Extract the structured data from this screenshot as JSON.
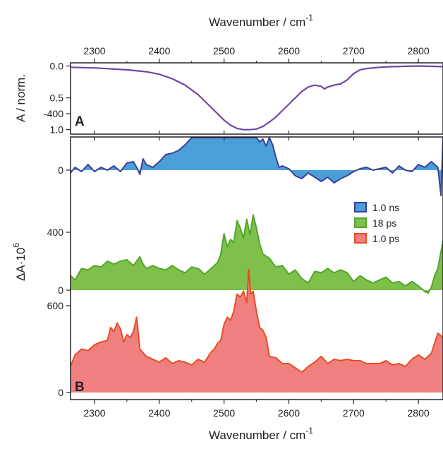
{
  "chart_data": [
    {
      "panel": "A",
      "type": "line",
      "xlabel_top": "Wavenumber / cm",
      "xlabel_top_sup": "-1",
      "ylabel": "A / norm.",
      "xlim": [
        2263,
        2838
      ],
      "ylim": [
        1.07,
        -0.05
      ],
      "y_reversed": true,
      "x_ticks": [
        "2300",
        "2400",
        "2500",
        "2600",
        "2700",
        "2800"
      ],
      "y_ticks": [
        "0.0",
        "0.5",
        "1.0"
      ],
      "color": "#6f47a6",
      "series": [
        {
          "x": [
            2263,
            2300,
            2350,
            2380,
            2400,
            2420,
            2440,
            2460,
            2480,
            2500,
            2510,
            2520,
            2530,
            2540,
            2550,
            2560,
            2570,
            2580,
            2590,
            2600,
            2610,
            2620,
            2630,
            2640,
            2650,
            2655,
            2660,
            2670,
            2675,
            2680,
            2690,
            2700,
            2710,
            2720,
            2740,
            2760,
            2800,
            2838
          ],
          "y": [
            0.02,
            0.03,
            0.06,
            0.09,
            0.13,
            0.2,
            0.3,
            0.45,
            0.65,
            0.85,
            0.93,
            0.98,
            1.0,
            1.0,
            0.99,
            0.95,
            0.88,
            0.8,
            0.7,
            0.6,
            0.5,
            0.4,
            0.33,
            0.3,
            0.32,
            0.36,
            0.33,
            0.3,
            0.29,
            0.28,
            0.22,
            0.12,
            0.06,
            0.04,
            0.02,
            0.01,
            0.0,
            0.01
          ]
        }
      ]
    },
    {
      "panel": "B",
      "type": "area",
      "xlabel": "Wavenumber / cm",
      "xlabel_sup": "-1",
      "ylabel": "ΔA·10",
      "ylabel_sup": "6",
      "xlim": [
        2263,
        2838
      ],
      "x_ticks": [
        "2300",
        "2400",
        "2500",
        "2600",
        "2700",
        "2800"
      ],
      "legend": {
        "placement": "right"
      },
      "series": [
        {
          "name": "1.0 ns",
          "fill": "#4a9fd8",
          "stroke": "#3b3f96",
          "y_ticks": [
            "0",
            "-400"
          ],
          "x": [
            2263,
            2270,
            2280,
            2290,
            2300,
            2310,
            2320,
            2330,
            2340,
            2350,
            2360,
            2365,
            2370,
            2375,
            2380,
            2390,
            2400,
            2410,
            2420,
            2430,
            2440,
            2450,
            2460,
            2465,
            2470,
            2475,
            2480,
            2485,
            2490,
            2495,
            2500,
            2505,
            2510,
            2515,
            2520,
            2525,
            2530,
            2535,
            2540,
            2545,
            2550,
            2555,
            2560,
            2565,
            2570,
            2575,
            2580,
            2585,
            2590,
            2600,
            2610,
            2620,
            2630,
            2640,
            2650,
            2660,
            2670,
            2680,
            2690,
            2700,
            2710,
            2720,
            2730,
            2740,
            2750,
            2760,
            2770,
            2780,
            2790,
            2800,
            2810,
            2820,
            2825,
            2830,
            2835,
            2838
          ],
          "y": [
            20,
            -20,
            10,
            -40,
            10,
            -20,
            0,
            -30,
            10,
            -50,
            -60,
            -20,
            30,
            -80,
            -40,
            -20,
            -60,
            -110,
            -120,
            -140,
            -180,
            -230,
            -250,
            -330,
            -300,
            -260,
            -380,
            -420,
            -480,
            -380,
            -310,
            -360,
            -370,
            -320,
            -340,
            -380,
            -310,
            -280,
            -330,
            -360,
            -280,
            -200,
            -220,
            -170,
            -280,
            -180,
            -90,
            -20,
            -30,
            -10,
            40,
            60,
            20,
            50,
            80,
            50,
            90,
            60,
            40,
            10,
            -10,
            -20,
            0,
            -10,
            -20,
            20,
            -30,
            0,
            10,
            -40,
            -20,
            -60,
            -40,
            -20,
            180,
            -450
          ]
        },
        {
          "name": "18 ps",
          "fill": "#7ec04a",
          "stroke": "#53a62b",
          "y_ticks": [
            "0",
            "400"
          ],
          "x": [
            2263,
            2270,
            2280,
            2290,
            2300,
            2310,
            2320,
            2330,
            2340,
            2350,
            2360,
            2370,
            2375,
            2380,
            2390,
            2400,
            2410,
            2420,
            2430,
            2440,
            2450,
            2460,
            2470,
            2480,
            2490,
            2495,
            2500,
            2505,
            2510,
            2515,
            2520,
            2525,
            2530,
            2535,
            2540,
            2545,
            2550,
            2555,
            2560,
            2570,
            2580,
            2590,
            2600,
            2610,
            2620,
            2630,
            2640,
            2650,
            2660,
            2670,
            2680,
            2690,
            2700,
            2710,
            2720,
            2730,
            2740,
            2750,
            2760,
            2770,
            2780,
            2790,
            2800,
            2810,
            2815,
            2820,
            2825,
            2830,
            2838
          ],
          "y": [
            100,
            70,
            150,
            140,
            170,
            160,
            200,
            180,
            200,
            210,
            170,
            230,
            180,
            150,
            170,
            150,
            140,
            170,
            140,
            120,
            160,
            150,
            110,
            150,
            190,
            250,
            390,
            300,
            350,
            330,
            480,
            430,
            360,
            490,
            380,
            520,
            430,
            320,
            250,
            220,
            160,
            170,
            110,
            140,
            80,
            50,
            130,
            120,
            150,
            120,
            140,
            120,
            60,
            100,
            70,
            50,
            70,
            90,
            50,
            60,
            30,
            60,
            30,
            -10,
            -20,
            20,
            100,
            150,
            340
          ]
        },
        {
          "name": "1.0 ps",
          "fill": "#f08080",
          "stroke": "#e84c22",
          "y_ticks": [
            "0",
            "600"
          ],
          "x": [
            2263,
            2270,
            2280,
            2290,
            2300,
            2310,
            2320,
            2325,
            2330,
            2335,
            2340,
            2345,
            2350,
            2355,
            2360,
            2365,
            2370,
            2380,
            2390,
            2400,
            2410,
            2420,
            2430,
            2440,
            2450,
            2460,
            2470,
            2480,
            2485,
            2490,
            2495,
            2500,
            2505,
            2510,
            2515,
            2520,
            2525,
            2530,
            2535,
            2538,
            2541,
            2545,
            2550,
            2555,
            2560,
            2565,
            2570,
            2580,
            2590,
            2600,
            2610,
            2620,
            2630,
            2640,
            2650,
            2660,
            2670,
            2680,
            2690,
            2700,
            2710,
            2720,
            2730,
            2740,
            2750,
            2760,
            2770,
            2780,
            2790,
            2800,
            2810,
            2820,
            2830,
            2838
          ],
          "y": [
            180,
            260,
            300,
            290,
            330,
            350,
            360,
            450,
            420,
            480,
            440,
            350,
            400,
            380,
            420,
            520,
            300,
            250,
            230,
            210,
            240,
            200,
            220,
            210,
            190,
            230,
            210,
            280,
            300,
            340,
            360,
            470,
            520,
            500,
            560,
            680,
            660,
            700,
            620,
            850,
            680,
            700,
            560,
            450,
            430,
            380,
            250,
            240,
            200,
            200,
            170,
            140,
            180,
            210,
            250,
            200,
            230,
            220,
            230,
            220,
            220,
            200,
            200,
            200,
            220,
            190,
            200,
            180,
            230,
            260,
            230,
            270,
            410,
            380
          ]
        }
      ]
    }
  ]
}
